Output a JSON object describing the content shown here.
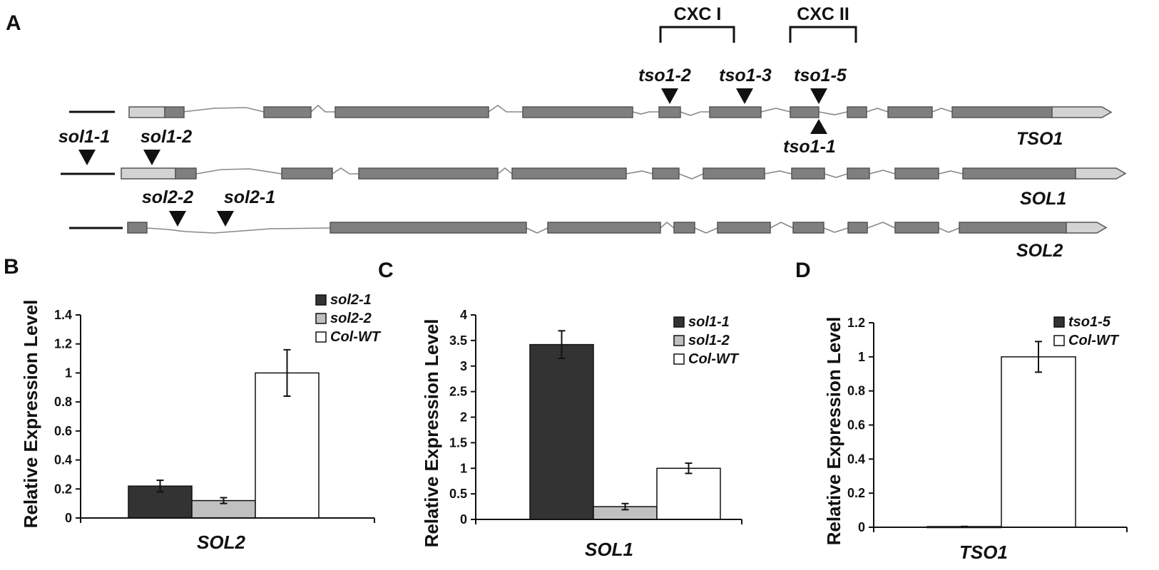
{
  "panel_a": {
    "label": "A",
    "domains": [
      "CXC I",
      "CXC II"
    ],
    "genes": {
      "tso1": {
        "name": "TSO1",
        "alleles_above": [
          "tso1-2",
          "tso1-3",
          "tso1-5"
        ],
        "alleles_below": [
          "tso1-1"
        ]
      },
      "sol1": {
        "name": "SOL1",
        "alleles": [
          "sol1-1",
          "sol1-2"
        ]
      },
      "sol2": {
        "name": "SOL2",
        "alleles": [
          "sol2-2",
          "sol2-1"
        ]
      }
    },
    "colors": {
      "exon": "#7f7f7f",
      "utr": "#d3d3d3",
      "intron": "#8c8c8c"
    }
  },
  "chart_data": [
    {
      "panel": "B",
      "type": "bar",
      "ylabel": "Relative Expression Level",
      "xlabel": "SOL2",
      "ylim": [
        0,
        1.4
      ],
      "yticks": [
        "0",
        "0.2",
        "0.4",
        "0.6",
        "0.8",
        "1",
        "1.2",
        "1.4"
      ],
      "grid": false,
      "legend": "top-right",
      "series": [
        {
          "name": "sol2-1",
          "value": 0.22,
          "error": 0.04,
          "color": "#333333"
        },
        {
          "name": "sol2-2",
          "value": 0.12,
          "error": 0.02,
          "color": "#c0c0c0"
        },
        {
          "name": "Col-WT",
          "value": 1.0,
          "error": 0.16,
          "color": "#ffffff"
        }
      ]
    },
    {
      "panel": "C",
      "type": "bar",
      "ylabel": "Relative Expression Level",
      "xlabel": "SOL1",
      "ylim": [
        0,
        4
      ],
      "yticks": [
        "0",
        "0.5",
        "1",
        "1.5",
        "2",
        "2.5",
        "3",
        "3.5",
        "4"
      ],
      "grid": false,
      "legend": "top-right",
      "series": [
        {
          "name": "sol1-1",
          "value": 3.42,
          "error": 0.27,
          "color": "#333333"
        },
        {
          "name": "sol1-2",
          "value": 0.25,
          "error": 0.06,
          "color": "#c0c0c0"
        },
        {
          "name": "Col-WT",
          "value": 1.0,
          "error": 0.1,
          "color": "#ffffff"
        }
      ]
    },
    {
      "panel": "D",
      "type": "bar",
      "ylabel": "Relative Expression Level",
      "xlabel": "TSO1",
      "ylim": [
        0,
        1.2
      ],
      "yticks": [
        "0",
        "0.2",
        "0.4",
        "0.6",
        "0.8",
        "1",
        "1.2"
      ],
      "grid": false,
      "legend": "top-right",
      "series": [
        {
          "name": "tso1-5",
          "value": 0.004,
          "error": 0.001,
          "color": "#333333"
        },
        {
          "name": "Col-WT",
          "value": 1.0,
          "error": 0.09,
          "color": "#ffffff"
        }
      ]
    }
  ]
}
